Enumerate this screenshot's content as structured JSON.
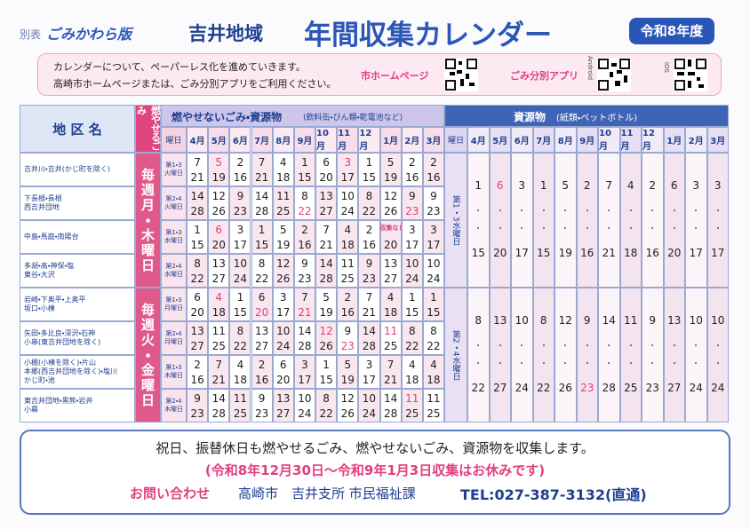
{
  "header": {
    "label": "別表",
    "publisher": "ごみかわら版",
    "area": "吉井地域",
    "title": "年間収集カレンダー",
    "year": "令和8年度"
  },
  "notice": {
    "lines": [
      "カレンダーについて、ペーパーレス化を進めていきます。",
      "高崎市ホームページまたは、ごみ分別アプリをご利用ください。"
    ],
    "homepage": "市ホームページ",
    "app": "ごみ分別アプリ",
    "android": "Android",
    "ios": "iOS"
  },
  "table": {
    "header": {
      "area": "地 区 名",
      "burnable": "燃やせるごみ",
      "nonburnable": "燃やせないごみ・資源物",
      "nonburnable_sub": "(飲料缶・びん類・乾電池など)",
      "recycle": "資源物",
      "recycle_sub": "(紙類・ペットボトル)",
      "day": "曜日",
      "months": [
        "4月",
        "5月",
        "6月",
        "7月",
        "8月",
        "9月",
        "10月",
        "11月",
        "12月",
        "1月",
        "2月",
        "3月"
      ]
    },
    "groups": [
      {
        "burnable": "毎週月・木曜日",
        "rows": [
          {
            "area": [
              "吉井川・吉井(かじ町を除く)"
            ],
            "day": "第1・3火曜日",
            "dates": [
              [
                7,
                21
              ],
              [
                5,
                19
              ],
              [
                2,
                16
              ],
              [
                7,
                21
              ],
              [
                4,
                18
              ],
              [
                1,
                15
              ],
              [
                6,
                20
              ],
              [
                3,
                17
              ],
              [
                1,
                15
              ],
              [
                5,
                19
              ],
              [
                2,
                16
              ],
              [
                2,
                16
              ]
            ]
          },
          {
            "area": [
              "下長根・長根",
              "西吉井団地"
            ],
            "day": "第2・4火曜日",
            "dates": [
              [
                14,
                28
              ],
              [
                12,
                26
              ],
              [
                9,
                23
              ],
              [
                14,
                28
              ],
              [
                11,
                25
              ],
              [
                8,
                22
              ],
              [
                13,
                27
              ],
              [
                10,
                24
              ],
              [
                8,
                22
              ],
              [
                12,
                26
              ],
              [
                9,
                23
              ],
              [
                9,
                23
              ]
            ]
          },
          {
            "area": [
              "中島・馬庭・南陽台"
            ],
            "day": "第1・3水曜日",
            "dates": [
              [
                1,
                15
              ],
              [
                6,
                20
              ],
              [
                3,
                17
              ],
              [
                1,
                15
              ],
              [
                5,
                19
              ],
              [
                2,
                16
              ],
              [
                7,
                21
              ],
              [
                4,
                18
              ],
              [
                2,
                16
              ],
              [
                "収集なし",
                20
              ],
              [
                3,
                17
              ],
              [
                3,
                17
              ]
            ]
          },
          {
            "area": [
              "多胡・高・神保・塩",
              "東谷・大沢"
            ],
            "day": "第2・4水曜日",
            "dates": [
              [
                8,
                22
              ],
              [
                13,
                27
              ],
              [
                10,
                24
              ],
              [
                8,
                22
              ],
              [
                12,
                26
              ],
              [
                9,
                23
              ],
              [
                14,
                28
              ],
              [
                11,
                25
              ],
              [
                9,
                23
              ],
              [
                13,
                27
              ],
              [
                10,
                24
              ],
              [
                10,
                24
              ]
            ]
          }
        ],
        "recycle": {
          "day": "第1・3水曜日",
          "dates": [
            [
              1,
              15
            ],
            [
              6,
              20
            ],
            [
              3,
              17
            ],
            [
              1,
              15
            ],
            [
              5,
              19
            ],
            [
              2,
              16
            ],
            [
              7,
              21
            ],
            [
              4,
              18
            ],
            [
              2,
              16
            ],
            [
              6,
              20
            ],
            [
              3,
              17
            ],
            [
              3,
              17
            ]
          ]
        }
      },
      {
        "burnable": "毎週火・金曜日",
        "rows": [
          {
            "area": [
              "岩崎・下奥平・上奥平",
              "坂口・小棟"
            ],
            "day": "第1・3月曜日",
            "dates": [
              [
                6,
                20
              ],
              [
                4,
                18
              ],
              [
                1,
                15
              ],
              [
                6,
                20
              ],
              [
                3,
                17
              ],
              [
                7,
                21
              ],
              [
                5,
                19
              ],
              [
                2,
                16
              ],
              [
                7,
                21
              ],
              [
                4,
                18
              ],
              [
                1,
                15
              ],
              [
                1,
                15
              ]
            ]
          },
          {
            "area": [
              "矢田・多比良・深沢・石神",
              "小串(東吉井団地を除く)"
            ],
            "day": "第2・4月曜日",
            "dates": [
              [
                13,
                27
              ],
              [
                11,
                25
              ],
              [
                8,
                22
              ],
              [
                13,
                27
              ],
              [
                10,
                24
              ],
              [
                14,
                28
              ],
              [
                12,
                26
              ],
              [
                9,
                23
              ],
              [
                14,
                28
              ],
              [
                11,
                25
              ],
              [
                8,
                22
              ],
              [
                8,
                22
              ]
            ]
          },
          {
            "area": [
              "小棚(小棟を除く)・片山",
              "本郷(西吉井団地を除く)・塩川",
              "かじ町・池"
            ],
            "day": "第1・3木曜日",
            "dates": [
              [
                2,
                16
              ],
              [
                7,
                21
              ],
              [
                4,
                18
              ],
              [
                2,
                16
              ],
              [
                6,
                20
              ],
              [
                3,
                17
              ],
              [
                1,
                15
              ],
              [
                5,
                19
              ],
              [
                3,
                17
              ],
              [
                7,
                21
              ],
              [
                4,
                18
              ],
              [
                4,
                18
              ]
            ]
          },
          {
            "area": [
              "東吉井団地・黒熊・岩井",
              "小幕"
            ],
            "day": "第2・4木曜日",
            "dates": [
              [
                9,
                23
              ],
              [
                14,
                28
              ],
              [
                11,
                25
              ],
              [
                9,
                23
              ],
              [
                13,
                27
              ],
              [
                10,
                24
              ],
              [
                8,
                22
              ],
              [
                12,
                26
              ],
              [
                10,
                24
              ],
              [
                14,
                28
              ],
              [
                11,
                25
              ],
              [
                11,
                25
              ]
            ]
          }
        ],
        "recycle": {
          "day": "第2・4水曜日",
          "dates": [
            [
              8,
              22
            ],
            [
              13,
              27
            ],
            [
              10,
              24
            ],
            [
              8,
              22
            ],
            [
              12,
              26
            ],
            [
              9,
              23
            ],
            [
              14,
              28
            ],
            [
              11,
              25
            ],
            [
              9,
              23
            ],
            [
              13,
              27
            ],
            [
              10,
              24
            ],
            [
              10,
              24
            ]
          ]
        }
      }
    ]
  },
  "footer": {
    "line1": "祝日、振替休日も燃やせるごみ、燃やせないごみ、資源物を収集します。",
    "line2": "(令和8年12月30日〜令和9年1月3日収集はお休みです)",
    "contact_label": "お問い合わせ",
    "office": "高崎市　吉井支所 市民福祉課",
    "tel": "TEL:027-387-3132(直通)"
  }
}
